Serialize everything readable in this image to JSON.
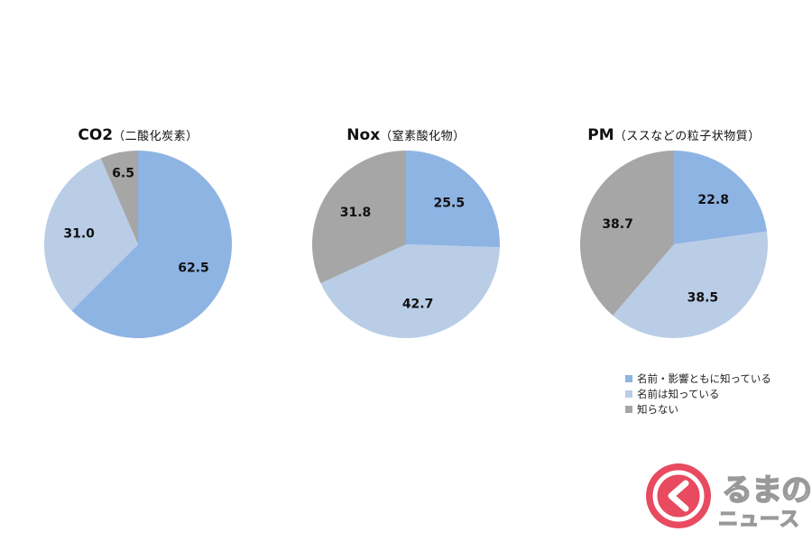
{
  "colors": {
    "known_both": "#8eb4e3",
    "known_name": "#b9cde6",
    "unknown": "#a6a6a6",
    "logo_red": "#e84a5f"
  },
  "legend": [
    {
      "label": "名前・影響ともに知っている",
      "color": "#8eb4e3"
    },
    {
      "label": "名前は知っている",
      "color": "#b9cde6"
    },
    {
      "label": "知らない",
      "color": "#a6a6a6"
    }
  ],
  "logo": {
    "line1": "るまの",
    "line2": "ニュース"
  },
  "chart_data": [
    {
      "type": "pie",
      "title": "CO2",
      "subtitle": "（二酸化炭素）",
      "categories": [
        "名前・影響ともに知っている",
        "名前は知っている",
        "知らない"
      ],
      "values": [
        62.5,
        31.0,
        6.5
      ],
      "labels": [
        "62.5",
        "31.0",
        "6.5"
      ]
    },
    {
      "type": "pie",
      "title": "Nox",
      "subtitle": "（窒素酸化物）",
      "categories": [
        "名前・影響ともに知っている",
        "名前は知っている",
        "知らない"
      ],
      "values": [
        25.5,
        42.7,
        31.8
      ],
      "labels": [
        "25.5",
        "42.7",
        "31.8"
      ]
    },
    {
      "type": "pie",
      "title": "PM",
      "subtitle": "（ススなどの粒子状物質）",
      "categories": [
        "名前・影響ともに知っている",
        "名前は知っている",
        "知らない"
      ],
      "values": [
        22.8,
        38.5,
        38.7
      ],
      "labels": [
        "22.8",
        "38.5",
        "38.7"
      ]
    }
  ]
}
